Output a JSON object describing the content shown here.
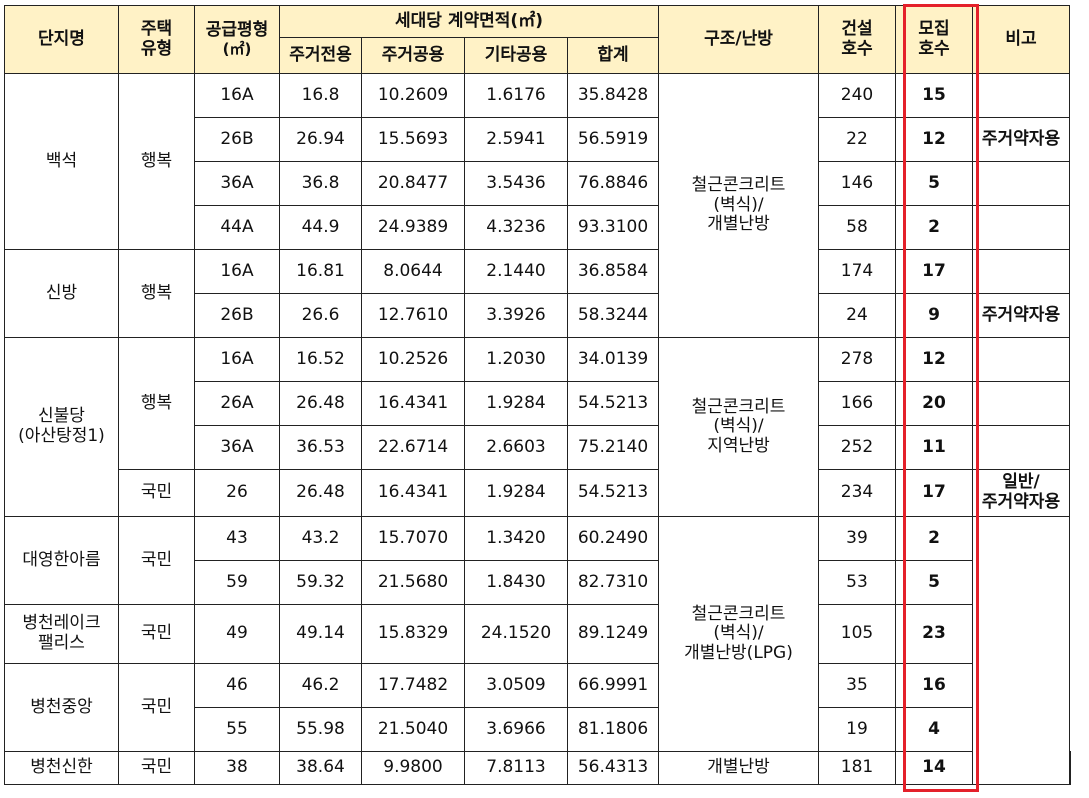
{
  "header": {
    "complex": "단지명",
    "type": "주택\n유형",
    "supply_py": "공급평형",
    "supply_unit": "(㎡)",
    "area_group": "세대당  계약면적(㎡)",
    "exclusive": "주거전용",
    "common": "주거공용",
    "other": "기타공용",
    "total": "합계",
    "structure": "구조/난방",
    "built": "건설\n호수",
    "recruit": "모집\n호수",
    "note": "비고"
  },
  "rows": [
    [
      "16A",
      "16.8",
      "10.2609",
      "1.6176",
      "35.8428",
      "240",
      "15"
    ],
    [
      "26B",
      "26.94",
      "15.5693",
      "2.5941",
      "56.5919",
      "22",
      "12"
    ],
    [
      "36A",
      "36.8",
      "20.8477",
      "3.5436",
      "76.8846",
      "146",
      "5"
    ],
    [
      "44A",
      "44.9",
      "24.9389",
      "4.3236",
      "93.3100",
      "58",
      "2"
    ],
    [
      "16A",
      "16.81",
      "8.0644",
      "2.1440",
      "36.8584",
      "174",
      "17"
    ],
    [
      "26B",
      "26.6",
      "12.7610",
      "3.3926",
      "58.3244",
      "24",
      "9"
    ],
    [
      "16A",
      "16.52",
      "10.2526",
      "1.2030",
      "34.0139",
      "278",
      "12"
    ],
    [
      "26A",
      "26.48",
      "16.4341",
      "1.9284",
      "54.5213",
      "166",
      "20"
    ],
    [
      "36A",
      "36.53",
      "22.6714",
      "2.6603",
      "75.2140",
      "252",
      "11"
    ],
    [
      "26",
      "26.48",
      "16.4341",
      "1.9284",
      "54.5213",
      "234",
      "17"
    ],
    [
      "43",
      "43.2",
      "15.7070",
      "1.3420",
      "60.2490",
      "39",
      "2"
    ],
    [
      "59",
      "59.32",
      "21.5680",
      "1.8430",
      "82.7310",
      "53",
      "5"
    ],
    [
      "49",
      "49.14",
      "15.8329",
      "24.1520",
      "89.1249",
      "105",
      "23"
    ],
    [
      "46",
      "46.2",
      "17.7482",
      "3.0509",
      "66.9991",
      "35",
      "16"
    ],
    [
      "55",
      "55.98",
      "21.5040",
      "3.6966",
      "81.1806",
      "19",
      "4"
    ],
    [
      "38",
      "38.64",
      "9.9800",
      "7.8113",
      "56.4313",
      "181",
      "14"
    ]
  ],
  "complexes": {
    "baekseok": "백석",
    "sinbang": "신방",
    "sinbuldang": "신불당\n(아산탕정1)",
    "daeyoung": "대영한아름",
    "lake": "병천레이크\n팰리스",
    "jungang": "병천중앙",
    "sinhan": "병천신한"
  },
  "types": {
    "happy": "행복",
    "national": "국민"
  },
  "structures": {
    "s1": "철근콘크리트\n(벽식)/\n개별난방",
    "s2": "철근콘크리트\n(벽식)/\n지역난방",
    "s3": "철근콘크리트\n(벽식)/\n개별난방(LPG)",
    "s4": "개별난방"
  },
  "notes": {
    "n1": "주거약자용",
    "n2": "주거약자용",
    "n3": "일반/\n주거약자용"
  }
}
